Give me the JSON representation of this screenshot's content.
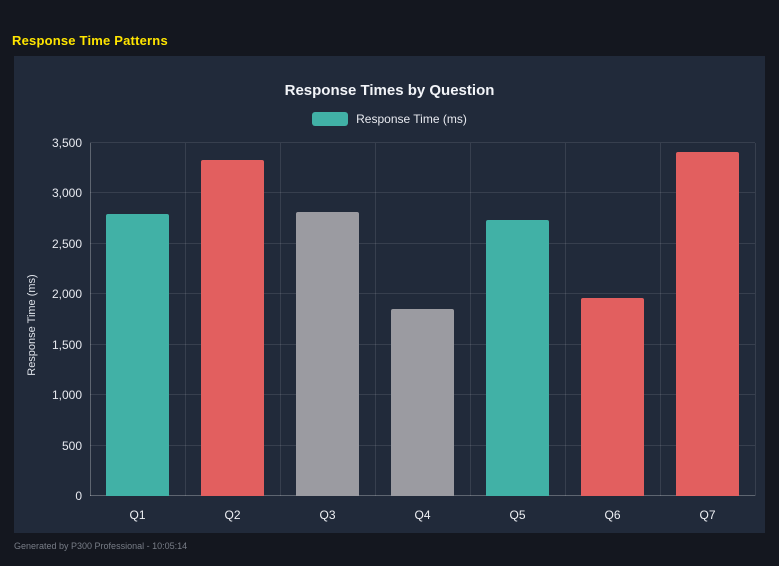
{
  "page": {
    "title": "Response Time Patterns",
    "footer": "Generated by P300 Professional - 10:05:14"
  },
  "colors": {
    "page_bg": "#14171f",
    "panel_bg": "#212a3a",
    "title_yellow": "#ffe500",
    "teal": "#41b1a6",
    "red": "#e25f5f",
    "gray": "#9b9ba1"
  },
  "chart_data": {
    "type": "bar",
    "title": "Response Times by Question",
    "legend": [
      {
        "label": "Response Time (ms)",
        "color": "#41b1a6"
      }
    ],
    "legend_position": "top",
    "categories": [
      "Q1",
      "Q2",
      "Q3",
      "Q4",
      "Q5",
      "Q6",
      "Q7"
    ],
    "values": [
      2800,
      3330,
      2820,
      1850,
      2740,
      1960,
      3410
    ],
    "bar_colors": [
      "#41b1a6",
      "#e25f5f",
      "#9b9ba1",
      "#9b9ba1",
      "#41b1a6",
      "#e25f5f",
      "#e25f5f"
    ],
    "xlabel": "",
    "ylabel": "Response Time (ms)",
    "ylim": [
      0,
      3500
    ],
    "yticks": [
      0,
      500,
      1000,
      1500,
      2000,
      2500,
      3000,
      3500
    ],
    "ytick_labels": [
      "0",
      "500",
      "1,000",
      "1,500",
      "2,000",
      "2,500",
      "3,000",
      "3,500"
    ],
    "grid": true
  }
}
